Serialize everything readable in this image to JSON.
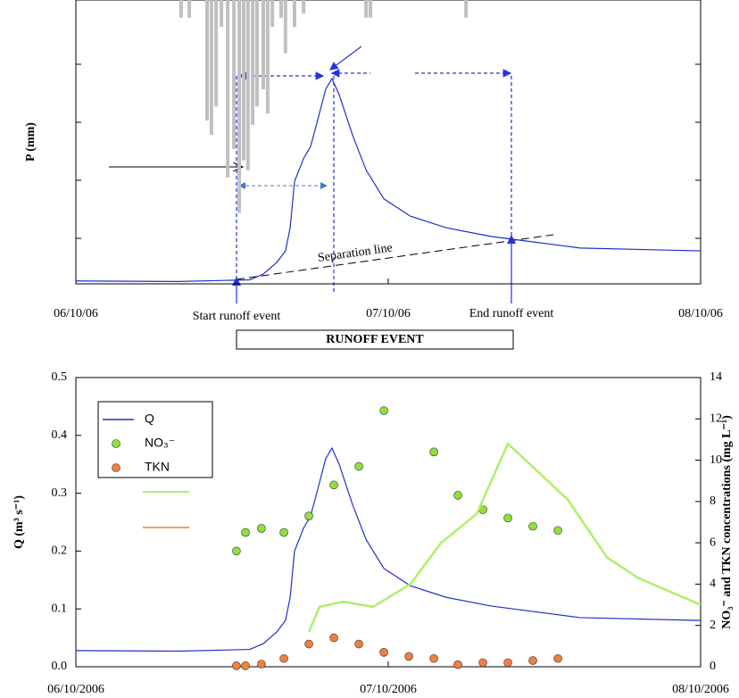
{
  "chart_data": [
    {
      "type": "combo",
      "y_label": "P (mm)",
      "xlim": [
        0,
        2
      ],
      "xticks": [
        {
          "value": 0,
          "label": "06/10/06"
        },
        {
          "value": 1,
          "label": "07/10/06"
        },
        {
          "value": 2,
          "label": "08/10/06"
        }
      ],
      "ylim": [
        0.023,
        0.514
      ],
      "y2lim": [
        40,
        0
      ],
      "annotations": {
        "start": "Start runoff event",
        "end": "End runoff event",
        "separation": "Separation line",
        "event": "RUNOFF EVENT"
      },
      "series": [
        {
          "type": "bar",
          "axis": "y2",
          "color": "#c0c0c0",
          "x": [
            0.337,
            0.363,
            0.42,
            0.434,
            0.449,
            0.466,
            0.486,
            0.506,
            0.523,
            0.537,
            0.551,
            0.566,
            0.58,
            0.6,
            0.614,
            0.629,
            0.657,
            0.671,
            0.7,
            0.729,
            0.929,
            0.943,
            1.249
          ],
          "values": [
            2.5,
            2.5,
            17,
            19,
            15,
            3.8,
            25,
            21,
            30,
            22.6,
            24,
            17.6,
            15,
            12.6,
            16,
            3.8,
            2.5,
            7.5,
            3.8,
            1.9,
            2.5,
            2.5,
            2.5
          ]
        },
        {
          "type": "line",
          "color": "#1f2fd0",
          "x": [
            0,
            0.329,
            0.557,
            0.6,
            0.643,
            0.671,
            0.686,
            0.7,
            0.729,
            0.751,
            0.771,
            0.8,
            0.82,
            0.843,
            0.886,
            0.929,
            0.986,
            1.071,
            1.186,
            1.329,
            1.471,
            1.614,
            2
          ],
          "values": [
            0.028,
            0.027,
            0.03,
            0.04,
            0.06,
            0.08,
            0.12,
            0.2,
            0.24,
            0.26,
            0.3,
            0.36,
            0.378,
            0.35,
            0.28,
            0.22,
            0.17,
            0.14,
            0.12,
            0.105,
            0.095,
            0.085,
            0.08
          ]
        }
      ]
    },
    {
      "type": "combo",
      "y_label": "Q (m³ s⁻¹)",
      "y2_label": "NO₃⁻ and TKN concentrations (mg L⁻¹)",
      "xlim": [
        0,
        2
      ],
      "xticks": [
        {
          "value": 0,
          "label": "06/10/2006"
        },
        {
          "value": 1,
          "label": "07/10/2006"
        },
        {
          "value": 2,
          "label": "08/10/2006"
        }
      ],
      "ylim": [
        0,
        0.5
      ],
      "yticks": [
        {
          "value": 0,
          "label": "0.0"
        },
        0.1,
        0.2,
        0.3,
        0.4,
        0.5
      ],
      "y2lim": [
        0,
        14
      ],
      "y2ticks": [
        0,
        2,
        4,
        6,
        8,
        10,
        12,
        14
      ],
      "series": [
        {
          "type": "line",
          "name": "Q",
          "color": "#1f2fd0",
          "x": [
            0,
            0.329,
            0.557,
            0.6,
            0.643,
            0.671,
            0.686,
            0.7,
            0.729,
            0.751,
            0.771,
            0.8,
            0.82,
            0.843,
            0.886,
            0.929,
            0.986,
            1.071,
            1.186,
            1.329,
            1.471,
            1.614,
            2
          ],
          "values": [
            0.028,
            0.027,
            0.03,
            0.04,
            0.06,
            0.08,
            0.12,
            0.2,
            0.24,
            0.26,
            0.3,
            0.36,
            0.378,
            0.35,
            0.28,
            0.22,
            0.17,
            0.14,
            0.12,
            0.105,
            0.095,
            0.085,
            0.08
          ]
        },
        {
          "type": "scatter",
          "name": "NO₃⁻",
          "axis": "y2",
          "color": "#8ee03a",
          "x": [
            0.514,
            0.543,
            0.594,
            0.666,
            0.746,
            0.826,
            0.906,
            0.986,
            1.146,
            1.223,
            1.303,
            1.383,
            1.463,
            1.543
          ],
          "values": [
            5.6,
            6.5,
            6.7,
            6.5,
            7.3,
            8.8,
            9.7,
            12.4,
            10.4,
            8.3,
            7.6,
            7.2,
            6.8,
            6.6
          ]
        },
        {
          "type": "scatter",
          "name": "TKN",
          "axis": "y2",
          "color": "#f08040",
          "x": [
            0.514,
            0.543,
            0.594,
            0.666,
            0.746,
            0.826,
            0.906,
            0.986,
            1.066,
            1.146,
            1.223,
            1.303,
            1.383,
            1.463,
            1.543
          ],
          "values": [
            0.05,
            0.05,
            0.13,
            0.4,
            1.1,
            1.4,
            1.1,
            0.7,
            0.5,
            0.4,
            0.1,
            0.2,
            0.2,
            0.3,
            0.4
          ]
        },
        {
          "type": "line",
          "axis": "y2",
          "color": "#aef06a",
          "x": [
            0.746,
            0.78,
            0.857,
            0.951,
            1.071,
            1.169,
            1.283,
            1.383,
            1.574,
            1.7,
            1.8,
            2
          ],
          "values": [
            1.7,
            2.9,
            3.15,
            2.9,
            4.0,
            6.0,
            7.4,
            10.8,
            8.1,
            5.3,
            4.3,
            3.0
          ]
        }
      ]
    }
  ]
}
